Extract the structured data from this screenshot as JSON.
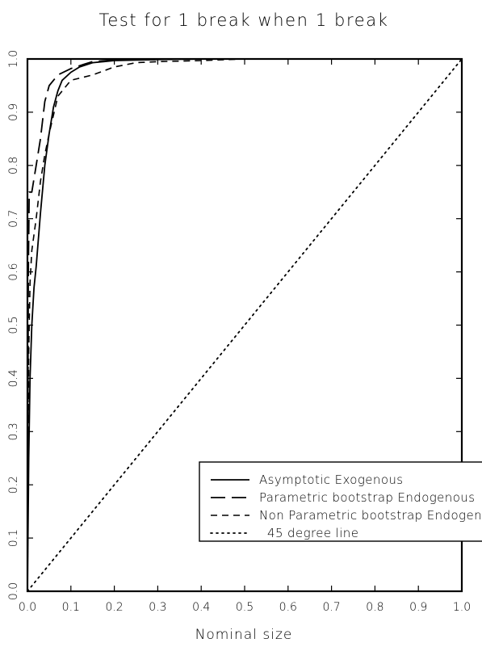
{
  "chart_data": {
    "type": "line",
    "title": "Test for 1 break when 1 break",
    "xlabel": "Nominal size",
    "ylabel": "",
    "xlim": [
      0.0,
      1.0
    ],
    "ylim": [
      0.0,
      1.0
    ],
    "xticks": [
      "0.0",
      "0.1",
      "0.2",
      "0.3",
      "0.4",
      "0.5",
      "0.6",
      "0.7",
      "0.8",
      "0.9",
      "1.0"
    ],
    "yticks": [
      "0.0",
      "0.1",
      "0.2",
      "0.3",
      "0.4",
      "0.5",
      "0.6",
      "0.7",
      "0.8",
      "0.9",
      "1.0"
    ],
    "grid": false,
    "legend_position": "bottom-right",
    "series": [
      {
        "name": "Asymptotic Exogenous",
        "style": "solid",
        "x": [
          0.0,
          0.003,
          0.006,
          0.01,
          0.015,
          0.02,
          0.03,
          0.04,
          0.05,
          0.06,
          0.07,
          0.08,
          0.1,
          0.12,
          0.15,
          0.2,
          0.25,
          0.3,
          0.4,
          0.5
        ],
        "y": [
          0.0,
          0.25,
          0.4,
          0.5,
          0.57,
          0.61,
          0.71,
          0.8,
          0.86,
          0.91,
          0.94,
          0.96,
          0.975,
          0.985,
          0.993,
          0.997,
          0.998,
          0.999,
          1.0,
          1.0
        ]
      },
      {
        "name": "Parametric bootstrap Endogenous",
        "style": "longdash",
        "x": [
          0.0,
          0.002,
          0.004,
          0.01,
          0.02,
          0.03,
          0.04,
          0.05,
          0.07,
          0.1,
          0.13,
          0.15,
          0.2,
          0.3,
          0.4,
          0.48
        ],
        "y": [
          0.0,
          0.6,
          0.75,
          0.75,
          0.8,
          0.85,
          0.92,
          0.95,
          0.97,
          0.982,
          0.99,
          0.995,
          0.998,
          0.999,
          1.0,
          1.0
        ]
      },
      {
        "name": "Non Parametric bootstrap Endogenous",
        "style": "shortdash",
        "x": [
          0.0,
          0.003,
          0.006,
          0.01,
          0.02,
          0.03,
          0.04,
          0.05,
          0.07,
          0.1,
          0.15,
          0.2,
          0.25,
          0.3,
          0.4,
          0.5
        ],
        "y": [
          0.0,
          0.45,
          0.58,
          0.64,
          0.7,
          0.77,
          0.82,
          0.86,
          0.93,
          0.96,
          0.97,
          0.985,
          0.993,
          0.995,
          0.997,
          1.0
        ]
      },
      {
        "name": "45 degree line",
        "style": "dotted",
        "x": [
          0.0,
          1.0
        ],
        "y": [
          0.0,
          1.0
        ]
      }
    ]
  }
}
